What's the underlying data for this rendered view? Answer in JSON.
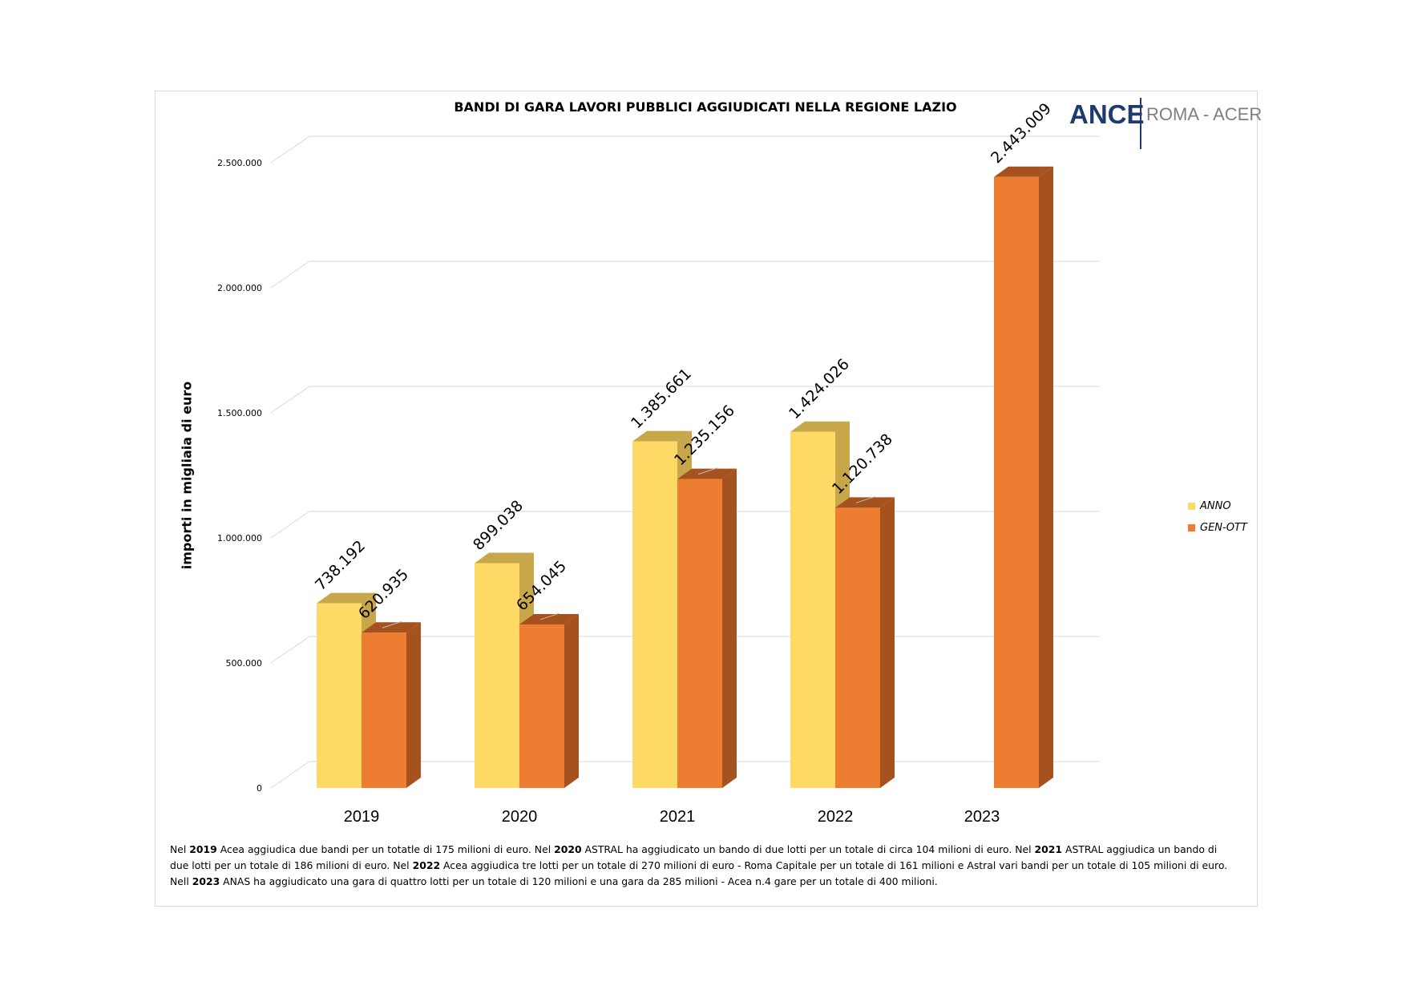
{
  "title": "BANDI DI GARA LAVORI PUBBLICI AGGIUDICATI NELLA REGIONE LAZIO",
  "logo": {
    "main": "ANCE",
    "sub": "ROMA - ACER"
  },
  "colors": {
    "anno": "#FFD966",
    "anno_top": "#C8A64A",
    "genott": "#ED7D31",
    "genott_side": "#A5521F",
    "grid": "#d9d9d9"
  },
  "chart_data": {
    "type": "bar",
    "title": "BANDI DI GARA LAVORI PUBBLICI AGGIUDICATI NELLA REGIONE LAZIO",
    "ylabel": "importi in migliaia di euro",
    "xlabel": "",
    "categories": [
      "2019",
      "2020",
      "2021",
      "2022",
      "2023"
    ],
    "series": [
      {
        "name": "ANNO",
        "values": [
          738192,
          899038,
          1385661,
          1424026,
          null
        ],
        "labels": [
          "738.192",
          "899.038",
          "1.385.661",
          "1.424.026",
          ""
        ]
      },
      {
        "name": "GEN-OTT",
        "values": [
          620935,
          654045,
          1235156,
          1120738,
          2443009
        ],
        "labels": [
          "620.935",
          "654.045",
          "1.235.156",
          "1.120.738",
          "2.443.009"
        ]
      }
    ],
    "ylim": [
      0,
      2500000
    ],
    "yticks": [
      0,
      500000,
      1000000,
      1500000,
      2000000,
      2500000
    ],
    "ytick_labels": [
      "0",
      "500.000",
      "1.000.000",
      "1.500.000",
      "2.000.000",
      "2.500.000"
    ],
    "legend_position": "right",
    "grid": true,
    "style": "3d-column"
  },
  "note": [
    {
      "t": "Nel ",
      "b": false
    },
    {
      "t": "2019",
      "b": true
    },
    {
      "t": " Acea aggiudica due bandi per un totatle di 175 milioni di euro. Nel ",
      "b": false
    },
    {
      "t": "2020",
      "b": true
    },
    {
      "t": " ASTRAL ha aggiudicato un bando di due lotti per un totale di circa 104 milioni di euro. Nel ",
      "b": false
    },
    {
      "t": "2021",
      "b": true
    },
    {
      "t": " ASTRAL aggiudica un bando di due lotti per un totale di 186 milioni di euro. Nel ",
      "b": false
    },
    {
      "t": "2022",
      "b": true
    },
    {
      "t": " Acea aggiudica tre lotti per un totale di 270 milioni di euro - Roma Capitale per un totale di 161 milioni e Astral vari bandi per un totale di 105 milioni di euro. Nell ",
      "b": false
    },
    {
      "t": "2023",
      "b": true
    },
    {
      "t": " ANAS ha aggiudicato una gara di quattro lotti per un totale di 120 milioni e una gara da 285 milioni - Acea n.4 gare per un totale di 400 milioni.",
      "b": false
    }
  ]
}
